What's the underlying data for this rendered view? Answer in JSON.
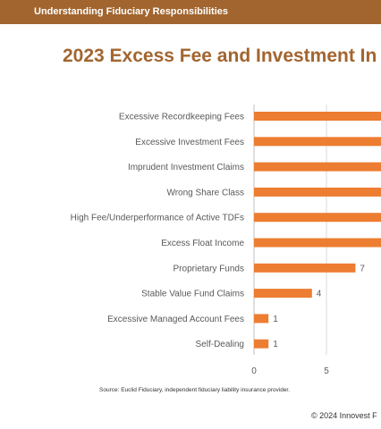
{
  "header": {
    "title": "Understanding Fiduciary Responsibilities"
  },
  "slide": {
    "title": "2023 Excess Fee and Investment In",
    "source": "Source: Euclid Fiduciary, independent fiduciary liability insurance provider.",
    "copyright": "© 2024 Innovest F"
  },
  "colors": {
    "header_bg": "#a2652f",
    "title": "#a2652f",
    "bar": "#ed7d31"
  },
  "chart_data": {
    "type": "bar",
    "orientation": "horizontal",
    "categories": [
      "Excessive Recordkeeping Fees",
      "Excessive Investment Fees",
      "Imprudent Investment Claims",
      "Wrong Share Class",
      "High Fee/Underperformance of Active TDFs",
      "Excess Float Income",
      "Proprietary Funds",
      "Stable Value Fund Claims",
      "Excessive Managed Account Fees",
      "Self-Dealing"
    ],
    "values": [
      null,
      null,
      null,
      null,
      null,
      null,
      7,
      4,
      1,
      1
    ],
    "data_labels": [
      "",
      "",
      "",
      "",
      "",
      "",
      "7",
      "4",
      "1",
      "1"
    ],
    "x_ticks": [
      "0",
      "5"
    ],
    "x_tick_values": [
      0,
      5
    ],
    "title": "2023 Excess Fee and Investment In",
    "xlabel": "",
    "ylabel": "",
    "grid": true,
    "legend": "none"
  }
}
